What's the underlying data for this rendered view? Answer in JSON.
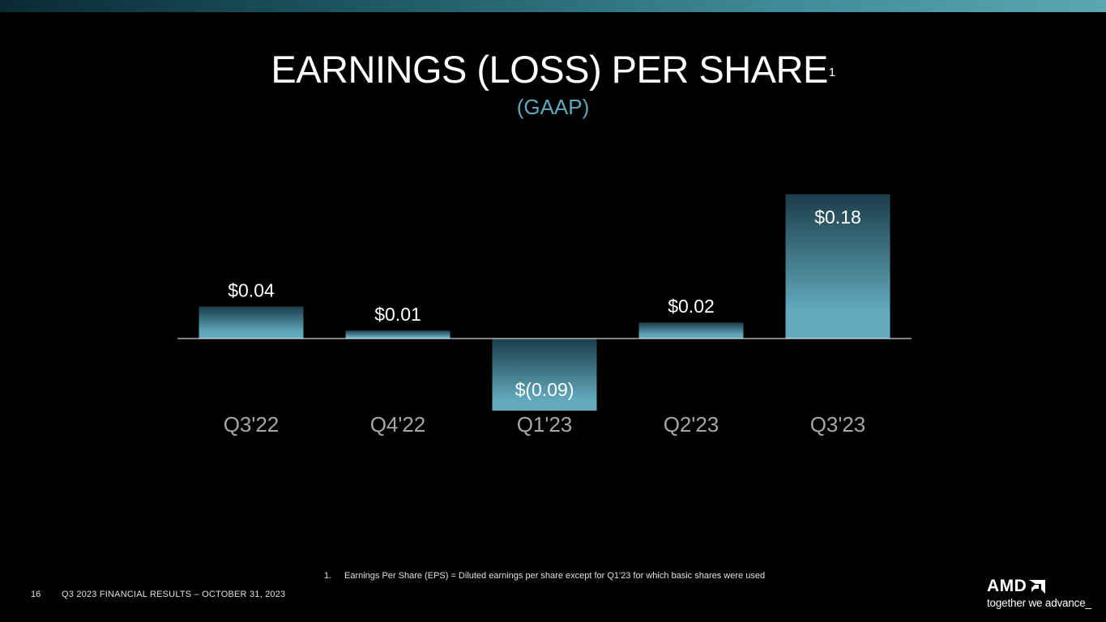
{
  "slide": {
    "title": "EARNINGS (LOSS) PER SHARE",
    "title_footnote_marker": "1",
    "subtitle": "(GAAP)",
    "footnote_number": "1.",
    "footnote_text": "Earnings Per Share (EPS) = Diluted earnings per share except for Q1'23 for which basic shares were used",
    "page_number": "16",
    "footer": "Q3 2023 FINANCIAL RESULTS – OCTOBER 31, 2023",
    "logo_text": "AMD",
    "logo_tagline": "together we advance_"
  },
  "colors": {
    "background": "#000000",
    "bar_light": "#62a9bd",
    "bar_dark": "#1b3d49",
    "subtitle": "#5fa8bc",
    "category_label": "#a6a6a6",
    "baseline": "#ffffff"
  },
  "chart_data": {
    "type": "bar",
    "title": "EARNINGS (LOSS) PER SHARE",
    "subtitle": "(GAAP)",
    "categories": [
      "Q3'22",
      "Q4'22",
      "Q1'23",
      "Q2'23",
      "Q3'23"
    ],
    "values": [
      0.04,
      0.01,
      -0.09,
      0.02,
      0.18
    ],
    "value_labels": [
      "$0.04",
      "$0.01",
      "$(0.09)",
      "$0.02",
      "$0.18"
    ],
    "xlabel": "",
    "ylabel": "",
    "grid": false,
    "legend": "none"
  }
}
